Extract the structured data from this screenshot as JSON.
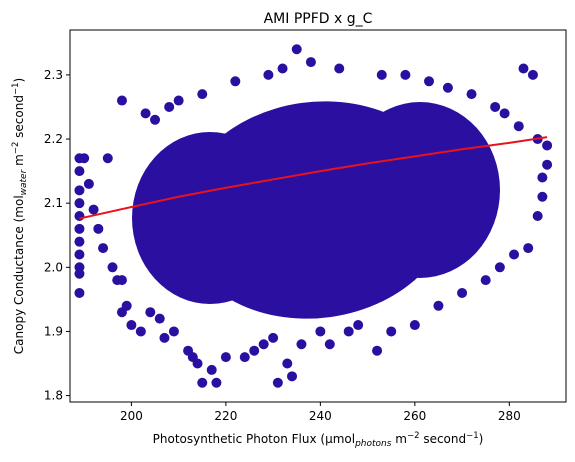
{
  "chart_data": {
    "type": "scatter",
    "title": "AMI PPFD x g_C",
    "xlabel": {
      "prefix": "Photosynthetic Photon Flux (µmol",
      "subscript": "photons",
      "mid1": " m",
      "sup1": "−2",
      "mid2": " second",
      "sup2": "−1",
      "suffix": ")"
    },
    "ylabel": {
      "prefix": "Canopy Conductance (mol",
      "subscript": "water",
      "mid1": " m",
      "sup1": "−2",
      "mid2": " second",
      "sup2": "−1",
      "suffix": ")"
    },
    "xlim": [
      187,
      292
    ],
    "ylim": [
      1.79,
      2.37
    ],
    "x_ticks": [
      "200",
      "220",
      "240",
      "260",
      "280"
    ],
    "y_ticks": [
      "1.8",
      "1.9",
      "2.0",
      "2.1",
      "2.2",
      "2.3"
    ],
    "grid": false,
    "legend": "none",
    "series": [
      {
        "style": "scatter",
        "color": "#2a0fa0",
        "points": [
          [
            189,
            2.17
          ],
          [
            189,
            2.15
          ],
          [
            189,
            2.12
          ],
          [
            189,
            2.1
          ],
          [
            189,
            2.08
          ],
          [
            189,
            2.06
          ],
          [
            189,
            2.04
          ],
          [
            189,
            2.02
          ],
          [
            189,
            2.0
          ],
          [
            189,
            1.99
          ],
          [
            189,
            1.96
          ],
          [
            190,
            2.17
          ],
          [
            191,
            2.13
          ],
          [
            192,
            2.09
          ],
          [
            193,
            2.06
          ],
          [
            194,
            2.03
          ],
          [
            195,
            2.17
          ],
          [
            196,
            2.0
          ],
          [
            197,
            1.98
          ],
          [
            198,
            1.98
          ],
          [
            198,
            1.93
          ],
          [
            198,
            2.26
          ],
          [
            199,
            1.94
          ],
          [
            200,
            1.91
          ],
          [
            202,
            1.9
          ],
          [
            203,
            2.24
          ],
          [
            204,
            1.93
          ],
          [
            205,
            2.23
          ],
          [
            206,
            1.92
          ],
          [
            207,
            1.89
          ],
          [
            208,
            2.25
          ],
          [
            209,
            1.9
          ],
          [
            210,
            2.26
          ],
          [
            212,
            1.87
          ],
          [
            213,
            1.86
          ],
          [
            214,
            1.85
          ],
          [
            215,
            1.82
          ],
          [
            215,
            2.27
          ],
          [
            217,
            1.84
          ],
          [
            218,
            1.82
          ],
          [
            220,
            1.86
          ],
          [
            222,
            2.29
          ],
          [
            224,
            1.86
          ],
          [
            226,
            1.87
          ],
          [
            228,
            1.88
          ],
          [
            229,
            2.3
          ],
          [
            230,
            1.89
          ],
          [
            231,
            1.82
          ],
          [
            232,
            2.31
          ],
          [
            233,
            1.85
          ],
          [
            234,
            1.83
          ],
          [
            235,
            2.34
          ],
          [
            236,
            1.88
          ],
          [
            238,
            2.32
          ],
          [
            240,
            1.9
          ],
          [
            242,
            1.88
          ],
          [
            244,
            2.31
          ],
          [
            246,
            1.9
          ],
          [
            248,
            1.91
          ],
          [
            252,
            1.87
          ],
          [
            253,
            2.3
          ],
          [
            255,
            1.9
          ],
          [
            258,
            2.3
          ],
          [
            260,
            1.91
          ],
          [
            263,
            2.29
          ],
          [
            265,
            1.94
          ],
          [
            267,
            2.28
          ],
          [
            270,
            1.96
          ],
          [
            272,
            2.27
          ],
          [
            275,
            1.98
          ],
          [
            277,
            2.25
          ],
          [
            278,
            2.0
          ],
          [
            279,
            2.24
          ],
          [
            281,
            2.02
          ],
          [
            282,
            2.22
          ],
          [
            283,
            2.31
          ],
          [
            284,
            2.03
          ],
          [
            285,
            2.3
          ],
          [
            286,
            2.2
          ],
          [
            286,
            2.08
          ],
          [
            287,
            2.14
          ],
          [
            287,
            2.11
          ],
          [
            288,
            2.16
          ],
          [
            288,
            2.19
          ]
        ]
      },
      {
        "style": "line",
        "color": "#e8121c",
        "points": [
          [
            189,
            2.076
          ],
          [
            200,
            2.094
          ],
          [
            210,
            2.11
          ],
          [
            220,
            2.124
          ],
          [
            230,
            2.137
          ],
          [
            240,
            2.15
          ],
          [
            250,
            2.162
          ],
          [
            260,
            2.173
          ],
          [
            270,
            2.184
          ],
          [
            280,
            2.194
          ],
          [
            288,
            2.203
          ]
        ]
      }
    ]
  }
}
